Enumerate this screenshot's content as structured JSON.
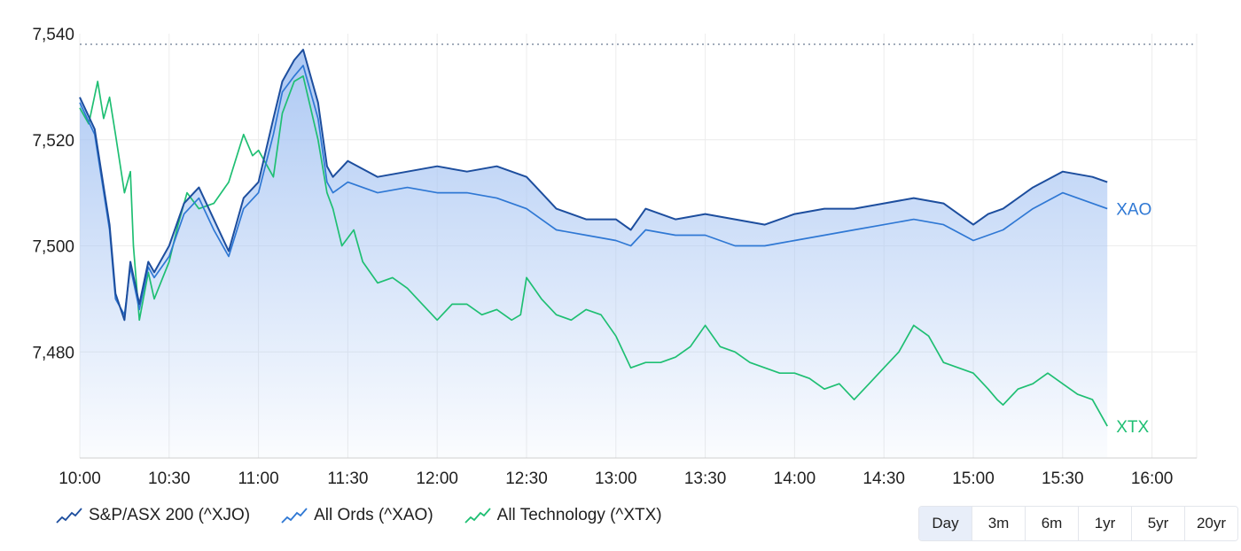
{
  "chart_data": {
    "type": "line",
    "x_labels": [
      "10:00",
      "10:30",
      "11:00",
      "11:30",
      "12:00",
      "12:30",
      "13:00",
      "13:30",
      "14:00",
      "14:30",
      "15:00",
      "15:30",
      "16:00"
    ],
    "xlim": [
      "10:00",
      "16:15"
    ],
    "ylim": [
      7460,
      7540
    ],
    "y_ticks": [
      7480,
      7500,
      7520,
      7540
    ],
    "y_tick_labels": [
      "7,480",
      "7,500",
      "7,520",
      "7,540"
    ],
    "reference_line": 7538,
    "grid": true,
    "legend_position": "bottom-left",
    "series": [
      {
        "name": "S&P/ASX 200 (^XJO)",
        "color": "#1d4e9e",
        "filled": true,
        "points": [
          [
            "10:00",
            7528
          ],
          [
            "10:05",
            7522
          ],
          [
            "10:10",
            7504
          ],
          [
            "10:12",
            7491
          ],
          [
            "10:15",
            7486
          ],
          [
            "10:17",
            7497
          ],
          [
            "10:20",
            7489
          ],
          [
            "10:23",
            7497
          ],
          [
            "10:25",
            7495
          ],
          [
            "10:30",
            7500
          ],
          [
            "10:35",
            7508
          ],
          [
            "10:40",
            7511
          ],
          [
            "10:45",
            7505
          ],
          [
            "10:50",
            7499
          ],
          [
            "10:55",
            7509
          ],
          [
            "11:00",
            7512
          ],
          [
            "11:05",
            7524
          ],
          [
            "11:08",
            7531
          ],
          [
            "11:12",
            7535
          ],
          [
            "11:15",
            7537
          ],
          [
            "11:20",
            7527
          ],
          [
            "11:23",
            7515
          ],
          [
            "11:25",
            7513
          ],
          [
            "11:30",
            7516
          ],
          [
            "11:40",
            7513
          ],
          [
            "11:50",
            7514
          ],
          [
            "12:00",
            7515
          ],
          [
            "12:10",
            7514
          ],
          [
            "12:20",
            7515
          ],
          [
            "12:30",
            7513
          ],
          [
            "12:35",
            7510
          ],
          [
            "12:40",
            7507
          ],
          [
            "12:50",
            7505
          ],
          [
            "13:00",
            7505
          ],
          [
            "13:05",
            7503
          ],
          [
            "13:10",
            7507
          ],
          [
            "13:20",
            7505
          ],
          [
            "13:30",
            7506
          ],
          [
            "13:40",
            7505
          ],
          [
            "13:50",
            7504
          ],
          [
            "14:00",
            7506
          ],
          [
            "14:10",
            7507
          ],
          [
            "14:20",
            7507
          ],
          [
            "14:30",
            7508
          ],
          [
            "14:40",
            7509
          ],
          [
            "14:50",
            7508
          ],
          [
            "15:00",
            7504
          ],
          [
            "15:05",
            7506
          ],
          [
            "15:10",
            7507
          ],
          [
            "15:20",
            7511
          ],
          [
            "15:30",
            7514
          ],
          [
            "15:40",
            7513
          ],
          [
            "15:45",
            7512
          ]
        ]
      },
      {
        "name": "All Ords (^XAO)",
        "label": "XAO",
        "color": "#2f78d4",
        "filled": false,
        "points": [
          [
            "10:00",
            7527
          ],
          [
            "10:05",
            7521
          ],
          [
            "10:10",
            7503
          ],
          [
            "10:12",
            7490
          ],
          [
            "10:15",
            7487
          ],
          [
            "10:17",
            7496
          ],
          [
            "10:20",
            7488
          ],
          [
            "10:23",
            7496
          ],
          [
            "10:25",
            7494
          ],
          [
            "10:30",
            7498
          ],
          [
            "10:35",
            7506
          ],
          [
            "10:40",
            7509
          ],
          [
            "10:45",
            7503
          ],
          [
            "10:50",
            7498
          ],
          [
            "10:55",
            7507
          ],
          [
            "11:00",
            7510
          ],
          [
            "11:05",
            7521
          ],
          [
            "11:08",
            7529
          ],
          [
            "11:12",
            7532
          ],
          [
            "11:15",
            7534
          ],
          [
            "11:20",
            7524
          ],
          [
            "11:23",
            7512
          ],
          [
            "11:25",
            7510
          ],
          [
            "11:30",
            7512
          ],
          [
            "11:40",
            7510
          ],
          [
            "11:50",
            7511
          ],
          [
            "12:00",
            7510
          ],
          [
            "12:10",
            7510
          ],
          [
            "12:20",
            7509
          ],
          [
            "12:30",
            7507
          ],
          [
            "12:35",
            7505
          ],
          [
            "12:40",
            7503
          ],
          [
            "12:50",
            7502
          ],
          [
            "13:00",
            7501
          ],
          [
            "13:05",
            7500
          ],
          [
            "13:10",
            7503
          ],
          [
            "13:20",
            7502
          ],
          [
            "13:30",
            7502
          ],
          [
            "13:40",
            7500
          ],
          [
            "13:50",
            7500
          ],
          [
            "14:00",
            7501
          ],
          [
            "14:10",
            7502
          ],
          [
            "14:20",
            7503
          ],
          [
            "14:30",
            7504
          ],
          [
            "14:40",
            7505
          ],
          [
            "14:50",
            7504
          ],
          [
            "15:00",
            7501
          ],
          [
            "15:05",
            7502
          ],
          [
            "15:10",
            7503
          ],
          [
            "15:20",
            7507
          ],
          [
            "15:30",
            7510
          ],
          [
            "15:40",
            7508
          ],
          [
            "15:45",
            7507
          ]
        ]
      },
      {
        "name": "All Technology (^XTX)",
        "label": "XTX",
        "color": "#1fbf73",
        "filled": false,
        "points": [
          [
            "10:00",
            7526
          ],
          [
            "10:03",
            7523
          ],
          [
            "10:06",
            7531
          ],
          [
            "10:08",
            7524
          ],
          [
            "10:10",
            7528
          ],
          [
            "10:12",
            7521
          ],
          [
            "10:15",
            7510
          ],
          [
            "10:17",
            7514
          ],
          [
            "10:18",
            7500
          ],
          [
            "10:20",
            7486
          ],
          [
            "10:23",
            7495
          ],
          [
            "10:25",
            7490
          ],
          [
            "10:30",
            7497
          ],
          [
            "10:33",
            7504
          ],
          [
            "10:36",
            7510
          ],
          [
            "10:40",
            7507
          ],
          [
            "10:45",
            7508
          ],
          [
            "10:50",
            7512
          ],
          [
            "10:55",
            7521
          ],
          [
            "10:58",
            7517
          ],
          [
            "11:00",
            7518
          ],
          [
            "11:05",
            7513
          ],
          [
            "11:08",
            7525
          ],
          [
            "11:12",
            7531
          ],
          [
            "11:15",
            7532
          ],
          [
            "11:20",
            7520
          ],
          [
            "11:23",
            7510
          ],
          [
            "11:25",
            7507
          ],
          [
            "11:28",
            7500
          ],
          [
            "11:32",
            7503
          ],
          [
            "11:35",
            7497
          ],
          [
            "11:40",
            7493
          ],
          [
            "11:45",
            7494
          ],
          [
            "11:50",
            7492
          ],
          [
            "11:55",
            7489
          ],
          [
            "12:00",
            7486
          ],
          [
            "12:05",
            7489
          ],
          [
            "12:10",
            7489
          ],
          [
            "12:15",
            7487
          ],
          [
            "12:20",
            7488
          ],
          [
            "12:25",
            7486
          ],
          [
            "12:28",
            7487
          ],
          [
            "12:30",
            7494
          ],
          [
            "12:35",
            7490
          ],
          [
            "12:40",
            7487
          ],
          [
            "12:45",
            7486
          ],
          [
            "12:50",
            7488
          ],
          [
            "12:55",
            7487
          ],
          [
            "13:00",
            7483
          ],
          [
            "13:05",
            7477
          ],
          [
            "13:10",
            7478
          ],
          [
            "13:15",
            7478
          ],
          [
            "13:20",
            7479
          ],
          [
            "13:25",
            7481
          ],
          [
            "13:30",
            7485
          ],
          [
            "13:35",
            7481
          ],
          [
            "13:40",
            7480
          ],
          [
            "13:45",
            7478
          ],
          [
            "13:50",
            7477
          ],
          [
            "13:55",
            7476
          ],
          [
            "14:00",
            7476
          ],
          [
            "14:05",
            7475
          ],
          [
            "14:10",
            7473
          ],
          [
            "14:15",
            7474
          ],
          [
            "14:20",
            7471
          ],
          [
            "14:25",
            7474
          ],
          [
            "14:30",
            7477
          ],
          [
            "14:35",
            7480
          ],
          [
            "14:40",
            7485
          ],
          [
            "14:45",
            7483
          ],
          [
            "14:50",
            7478
          ],
          [
            "14:55",
            7477
          ],
          [
            "15:00",
            7476
          ],
          [
            "15:05",
            7473
          ],
          [
            "15:08",
            7471
          ],
          [
            "15:10",
            7470
          ],
          [
            "15:15",
            7473
          ],
          [
            "15:20",
            7474
          ],
          [
            "15:25",
            7476
          ],
          [
            "15:30",
            7474
          ],
          [
            "15:35",
            7472
          ],
          [
            "15:40",
            7471
          ],
          [
            "15:45",
            7466
          ]
        ]
      }
    ]
  },
  "range_buttons": {
    "day": "Day",
    "m3": "3m",
    "m6": "6m",
    "y1": "1yr",
    "y5": "5yr",
    "y20": "20yr"
  }
}
